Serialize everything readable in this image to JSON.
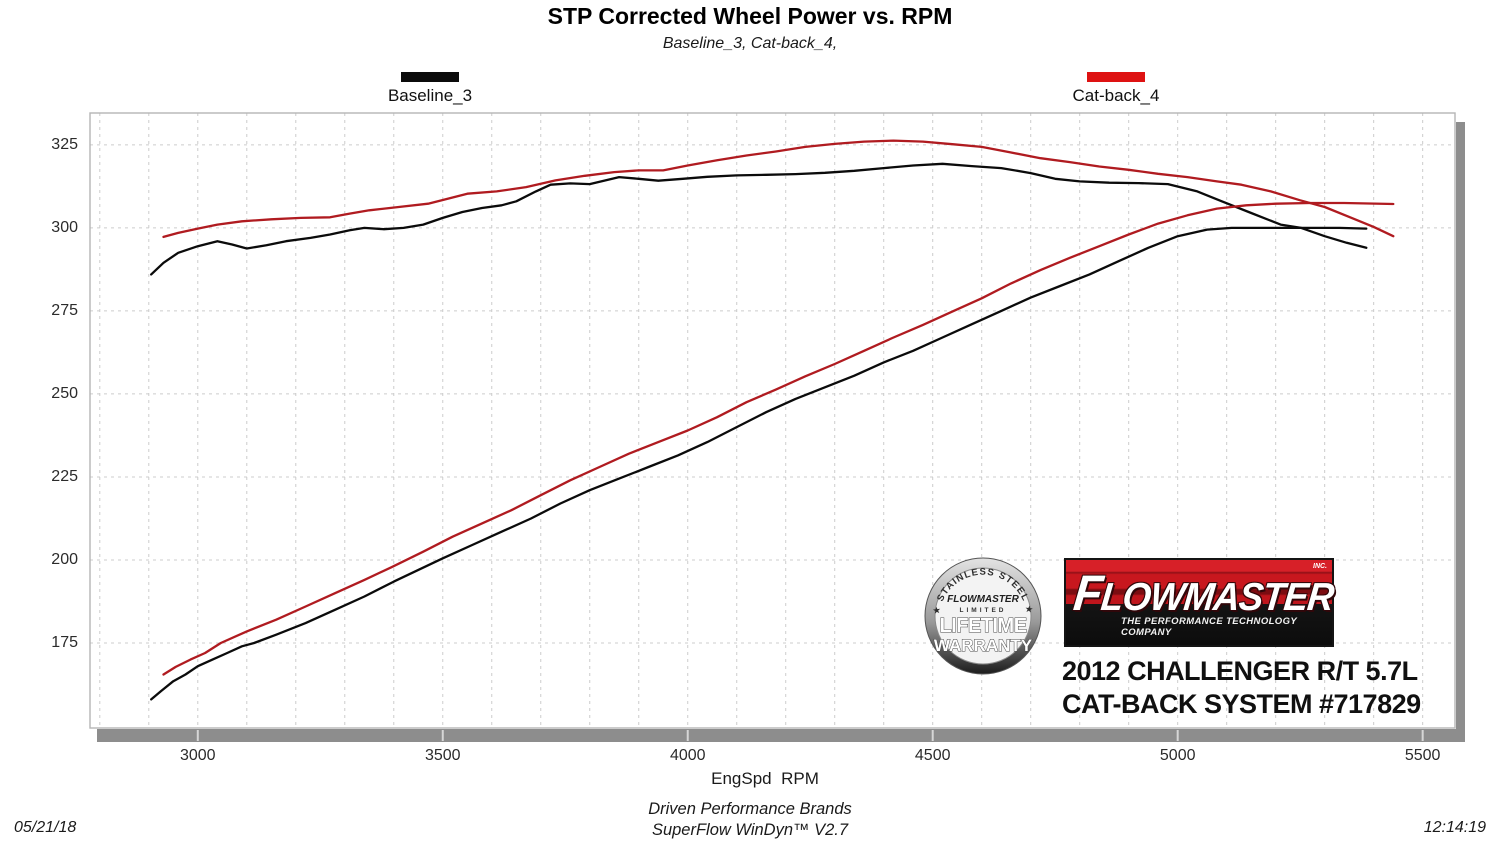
{
  "title": "STP Corrected Wheel Power vs. RPM",
  "subtitle": "Baseline_3,  Cat-back_4,",
  "legend": [
    {
      "label": "Baseline_3",
      "color": "#0b0b0b"
    },
    {
      "label": "Cat-back_4",
      "color": "#de1212"
    }
  ],
  "footer": {
    "xlabel": "EngSpd  RPM",
    "brand": "Driven Performance Brands",
    "software": "SuperFlow WinDyn™ V2.7",
    "date": "05/21/18",
    "time": "12:14:19"
  },
  "watermark": {
    "badge": {
      "arc_top": "★ STAINLESS STEEL ★",
      "brand": "FLOWMASTER",
      "limited": "LIMITED",
      "line1": "LIFETIME",
      "line2": "WARRANTY"
    },
    "logo": {
      "brand": "FLOWMASTER",
      "inc": "INC.",
      "tagline": "THE PERFORMANCE TECHNOLOGY COMPANY",
      "red": "#c8171e",
      "black": "#0c0c0c"
    },
    "caption_line1": "2012 CHALLENGER R/T 5.7L",
    "caption_line2": "CAT-BACK SYSTEM #717829"
  },
  "chart_data": {
    "type": "line",
    "title": "STP Corrected Wheel Power vs. RPM",
    "xlabel": "EngSpd RPM",
    "ylabel": "",
    "x_ticks": [
      3000,
      3500,
      4000,
      4500,
      5000,
      5500
    ],
    "y_ticks": [
      175,
      200,
      225,
      250,
      275,
      300,
      325
    ],
    "x_range": [
      2780,
      5566
    ],
    "y_range": [
      149.4,
      334.6
    ],
    "grid": {
      "x_minor_step": 100,
      "y_step": 25,
      "style": "dashed"
    },
    "legend_position": "top",
    "colors": {
      "grid": "#cccccc",
      "border": "#b5b5b5",
      "axis_shadow": "#8d8d8d"
    },
    "series": [
      {
        "name": "Baseline_3",
        "color": "#0b0b0b",
        "curves": {
          "upper": [
            [
              2905,
              286
            ],
            [
              2930,
              289.5
            ],
            [
              2960,
              292.5
            ],
            [
              3000,
              294.5
            ],
            [
              3040,
              296
            ],
            [
              3070,
              295
            ],
            [
              3100,
              293.8
            ],
            [
              3140,
              294.8
            ],
            [
              3180,
              296
            ],
            [
              3230,
              297
            ],
            [
              3270,
              298
            ],
            [
              3310,
              299.3
            ],
            [
              3340,
              300
            ],
            [
              3380,
              299.6
            ],
            [
              3420,
              300
            ],
            [
              3460,
              301
            ],
            [
              3500,
              303
            ],
            [
              3540,
              304.8
            ],
            [
              3580,
              306
            ],
            [
              3620,
              306.8
            ],
            [
              3650,
              308
            ],
            [
              3690,
              311
            ],
            [
              3720,
              313
            ],
            [
              3760,
              313.4
            ],
            [
              3800,
              313.2
            ],
            [
              3860,
              315.3
            ],
            [
              3900,
              314.8
            ],
            [
              3940,
              314.2
            ],
            [
              3990,
              314.8
            ],
            [
              4040,
              315.4
            ],
            [
              4100,
              315.8
            ],
            [
              4160,
              316
            ],
            [
              4220,
              316.2
            ],
            [
              4280,
              316.6
            ],
            [
              4340,
              317.2
            ],
            [
              4400,
              318
            ],
            [
              4460,
              318.8
            ],
            [
              4520,
              319.3
            ],
            [
              4580,
              318.6
            ],
            [
              4640,
              318
            ],
            [
              4700,
              316.5
            ],
            [
              4750,
              314.8
            ],
            [
              4800,
              314
            ],
            [
              4860,
              313.6
            ],
            [
              4920,
              313.5
            ],
            [
              4980,
              313.2
            ],
            [
              5040,
              311
            ],
            [
              5090,
              308
            ],
            [
              5150,
              304.5
            ],
            [
              5210,
              301
            ],
            [
              5252,
              300
            ],
            [
              5300,
              297.5
            ],
            [
              5345,
              295.5
            ],
            [
              5385,
              294
            ]
          ],
          "lower": [
            [
              2905,
              158
            ],
            [
              2925,
              160.5
            ],
            [
              2950,
              163.5
            ],
            [
              2975,
              165.5
            ],
            [
              3000,
              168
            ],
            [
              3030,
              170
            ],
            [
              3060,
              172
            ],
            [
              3090,
              174
            ],
            [
              3115,
              175
            ],
            [
              3160,
              177.5
            ],
            [
              3220,
              181
            ],
            [
              3280,
              185
            ],
            [
              3340,
              189
            ],
            [
              3400,
              193.5
            ],
            [
              3450,
              197
            ],
            [
              3500,
              200.5
            ],
            [
              3560,
              204.5
            ],
            [
              3620,
              208.5
            ],
            [
              3680,
              212.5
            ],
            [
              3740,
              217
            ],
            [
              3800,
              221
            ],
            [
              3860,
              224.5
            ],
            [
              3920,
              228
            ],
            [
              3980,
              231.5
            ],
            [
              4040,
              235.5
            ],
            [
              4100,
              240
            ],
            [
              4160,
              244.5
            ],
            [
              4220,
              248.5
            ],
            [
              4280,
              252
            ],
            [
              4340,
              255.5
            ],
            [
              4400,
              259.5
            ],
            [
              4460,
              263
            ],
            [
              4520,
              267
            ],
            [
              4580,
              271
            ],
            [
              4640,
              275
            ],
            [
              4700,
              279
            ],
            [
              4760,
              282.5
            ],
            [
              4820,
              286
            ],
            [
              4880,
              290
            ],
            [
              4940,
              294
            ],
            [
              5000,
              297.5
            ],
            [
              5060,
              299.5
            ],
            [
              5110,
              300
            ],
            [
              5180,
              300
            ],
            [
              5260,
              300
            ],
            [
              5330,
              300
            ],
            [
              5385,
              299.8
            ]
          ]
        }
      },
      {
        "name": "Cat-back_4",
        "color": "#b01b20",
        "curves": {
          "upper": [
            [
              2930,
              297.3
            ],
            [
              2960,
              298.5
            ],
            [
              3000,
              299.8
            ],
            [
              3040,
              301
            ],
            [
              3090,
              302
            ],
            [
              3150,
              302.6
            ],
            [
              3210,
              303
            ],
            [
              3270,
              303.2
            ],
            [
              3310,
              304.3
            ],
            [
              3350,
              305.3
            ],
            [
              3410,
              306.3
            ],
            [
              3470,
              307.3
            ],
            [
              3510,
              308.8
            ],
            [
              3550,
              310.3
            ],
            [
              3610,
              311
            ],
            [
              3670,
              312.3
            ],
            [
              3730,
              314.3
            ],
            [
              3790,
              315.7
            ],
            [
              3850,
              316.8
            ],
            [
              3900,
              317.3
            ],
            [
              3950,
              317.3
            ],
            [
              4000,
              318.8
            ],
            [
              4060,
              320.4
            ],
            [
              4120,
              321.8
            ],
            [
              4180,
              323
            ],
            [
              4240,
              324.4
            ],
            [
              4300,
              325.3
            ],
            [
              4360,
              326
            ],
            [
              4420,
              326.3
            ],
            [
              4480,
              326
            ],
            [
              4540,
              325.2
            ],
            [
              4600,
              324.4
            ],
            [
              4660,
              322.7
            ],
            [
              4720,
              321
            ],
            [
              4780,
              319.8
            ],
            [
              4840,
              318.5
            ],
            [
              4900,
              317.5
            ],
            [
              4960,
              316.3
            ],
            [
              5020,
              315.3
            ],
            [
              5080,
              314
            ],
            [
              5130,
              313
            ],
            [
              5190,
              311
            ],
            [
              5250,
              308.3
            ],
            [
              5300,
              306.3
            ],
            [
              5350,
              303.3
            ],
            [
              5400,
              300.3
            ],
            [
              5440,
              297.5
            ]
          ],
          "lower": [
            [
              2930,
              165.5
            ],
            [
              2955,
              167.8
            ],
            [
              2985,
              170
            ],
            [
              3015,
              172
            ],
            [
              3047,
              175
            ],
            [
              3100,
              178.5
            ],
            [
              3160,
              182
            ],
            [
              3220,
              186
            ],
            [
              3280,
              190
            ],
            [
              3340,
              194
            ],
            [
              3395,
              197.8
            ],
            [
              3460,
              202.5
            ],
            [
              3520,
              207
            ],
            [
              3580,
              211
            ],
            [
              3640,
              215
            ],
            [
              3700,
              219.5
            ],
            [
              3760,
              224
            ],
            [
              3820,
              228
            ],
            [
              3880,
              232
            ],
            [
              3940,
              235.5
            ],
            [
              4000,
              239
            ],
            [
              4060,
              243
            ],
            [
              4120,
              247.5
            ],
            [
              4180,
              251.3
            ],
            [
              4240,
              255.3
            ],
            [
              4300,
              259
            ],
            [
              4360,
              263
            ],
            [
              4420,
              267
            ],
            [
              4480,
              270.8
            ],
            [
              4540,
              274.8
            ],
            [
              4600,
              278.8
            ],
            [
              4660,
              283.3
            ],
            [
              4720,
              287.3
            ],
            [
              4780,
              291
            ],
            [
              4840,
              294.5
            ],
            [
              4900,
              298
            ],
            [
              4960,
              301.3
            ],
            [
              5020,
              303.8
            ],
            [
              5080,
              305.8
            ],
            [
              5140,
              306.8
            ],
            [
              5200,
              307.3
            ],
            [
              5270,
              307.5
            ],
            [
              5340,
              307.5
            ],
            [
              5440,
              307.2
            ]
          ]
        }
      }
    ]
  }
}
